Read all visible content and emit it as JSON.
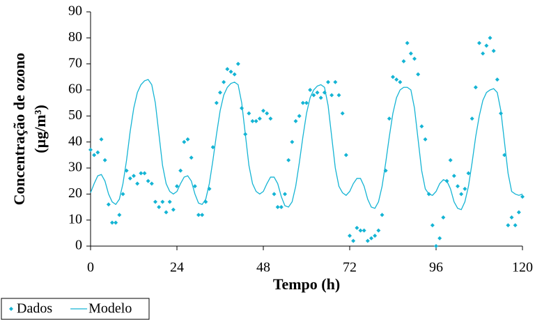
{
  "chart_data": {
    "type": "line",
    "xlabel": "Tempo (h)",
    "ylabel": [
      "Concentração de ozono",
      "(µg/m³)"
    ],
    "xlim": [
      0,
      120
    ],
    "xticks": [
      0,
      24,
      48,
      72,
      96,
      120
    ],
    "ylim": [
      0,
      90
    ],
    "yticks": [
      0,
      10,
      20,
      30,
      40,
      50,
      60,
      70,
      80,
      90
    ],
    "legend": "bottom-left",
    "x": [
      0,
      1,
      2,
      3,
      4,
      5,
      6,
      7,
      8,
      9,
      10,
      11,
      12,
      13,
      14,
      15,
      16,
      17,
      18,
      19,
      20,
      21,
      22,
      23,
      24,
      25,
      26,
      27,
      28,
      29,
      30,
      31,
      32,
      33,
      34,
      35,
      36,
      37,
      38,
      39,
      40,
      41,
      42,
      43,
      44,
      45,
      46,
      47,
      48,
      49,
      50,
      51,
      52,
      53,
      54,
      55,
      56,
      57,
      58,
      59,
      60,
      61,
      62,
      63,
      64,
      65,
      66,
      67,
      68,
      69,
      70,
      71,
      72,
      73,
      74,
      75,
      76,
      77,
      78,
      79,
      80,
      81,
      82,
      83,
      84,
      85,
      86,
      87,
      88,
      89,
      90,
      91,
      92,
      93,
      94,
      95,
      96,
      97,
      98,
      99,
      100,
      101,
      102,
      103,
      104,
      105,
      106,
      107,
      108,
      109,
      110,
      111,
      112,
      113,
      114,
      115,
      116,
      117,
      118,
      119,
      120
    ],
    "series": [
      {
        "name": "Dados",
        "color": "#14b4d4",
        "mode": "markers",
        "values": [
          37,
          35,
          36,
          41,
          33,
          16,
          9,
          9,
          12,
          20,
          29,
          26,
          27,
          24,
          28,
          28,
          25,
          24,
          17,
          15,
          17,
          13,
          17,
          14,
          23,
          29,
          40,
          41,
          34,
          23,
          12,
          12,
          17,
          22,
          38,
          55,
          59,
          63,
          68,
          67,
          66,
          70,
          53,
          43,
          51,
          48,
          48,
          49,
          52,
          51,
          49,
          20,
          15,
          15,
          20,
          33,
          40,
          48,
          50,
          55,
          55,
          60,
          58,
          59,
          57,
          59,
          63,
          58,
          63,
          58,
          51,
          35,
          4,
          2,
          7,
          6,
          6,
          2,
          3,
          4,
          6,
          12,
          29,
          49,
          65,
          64,
          63,
          71,
          78,
          74,
          72,
          66,
          46,
          41,
          20,
          8,
          0,
          3,
          11,
          25,
          33,
          27,
          23,
          20,
          22,
          28,
          49,
          61,
          78,
          74,
          77,
          80,
          75,
          64,
          51,
          35,
          8,
          11,
          8,
          13,
          19
        ]
      },
      {
        "name": "Modelo",
        "color": "#14b4d4",
        "mode": "lines",
        "values": [
          20.5,
          24,
          27,
          27.5,
          25,
          20,
          17,
          16,
          18,
          24,
          33,
          44,
          53,
          59,
          62,
          63.5,
          64,
          62,
          55,
          43,
          31,
          24,
          21,
          20,
          21,
          24,
          26.5,
          27,
          25,
          20,
          16.5,
          16,
          18,
          24,
          33,
          43,
          52,
          58,
          61,
          62.5,
          63,
          62,
          55,
          43,
          31,
          24,
          21,
          20,
          21,
          24,
          26.5,
          26.5,
          24,
          19,
          15.5,
          15,
          17,
          23,
          32,
          42,
          51,
          57,
          60,
          61.5,
          62,
          61,
          54,
          42,
          30,
          23,
          20.5,
          19.5,
          21,
          24,
          26,
          26,
          23,
          18,
          15,
          14.5,
          17,
          23,
          32,
          42,
          51,
          57,
          60,
          61,
          61,
          60,
          53,
          41,
          29,
          22,
          20,
          19.5,
          21,
          24,
          25.5,
          25,
          22,
          17,
          14.5,
          14,
          17,
          23,
          32,
          42,
          50,
          56,
          59,
          60,
          60.5,
          59,
          52,
          40,
          28,
          21,
          20,
          19.5,
          20
        ]
      }
    ]
  }
}
